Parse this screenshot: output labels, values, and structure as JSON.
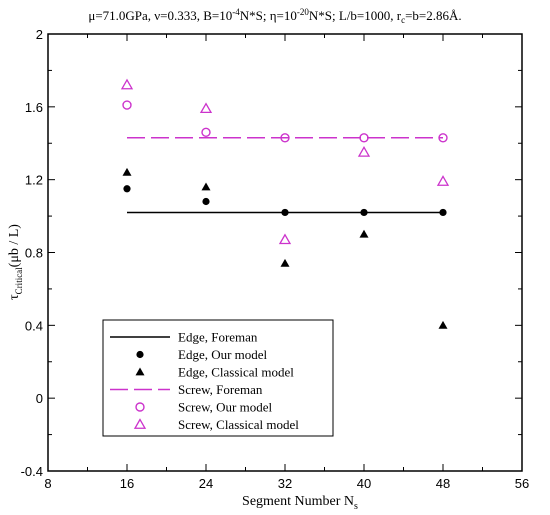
{
  "chart_data": {
    "type": "scatter",
    "title": "μ=71.0GPa, ν=0.333, B=10⁻⁴N*S; η=10⁻²⁰N*S; L/b=1000, r_c=b=2.86Å.",
    "title_parts": {
      "a": "μ=71.0GPa, ν=0.333, B=10",
      "b": "-4",
      "c": "N*S; η=10",
      "d": "-20",
      "e": "N*S; L/b=1000, r",
      "f": "c",
      "g": "=b=2.86Å."
    },
    "xlabel": "Segment Number N",
    "xlabel_sub": "s",
    "ylabel": "τ",
    "ylabel_sub": "Critical",
    "ylabel_tail": "(μb / L)",
    "xlim": [
      8,
      56
    ],
    "ylim": [
      -0.4,
      2
    ],
    "xticks": [
      "8",
      "16",
      "24",
      "32",
      "40",
      "48",
      "56"
    ],
    "yticks": [
      "-0.4",
      "0",
      "0.4",
      "0.8",
      "1.2",
      "1.6",
      "2"
    ],
    "grid": false,
    "legend_position": "bottom-left",
    "colors": {
      "edge": "#000000",
      "screw": "#cc33cc"
    },
    "series": [
      {
        "name": "Edge, Foreman",
        "style": "line-solid",
        "color": "#000000",
        "x": [
          16,
          48
        ],
        "y": [
          1.02,
          1.02
        ]
      },
      {
        "name": "Edge, Our model",
        "style": "filled-circle",
        "color": "#000000",
        "x": [
          16,
          24,
          32,
          40,
          48
        ],
        "y": [
          1.15,
          1.08,
          1.02,
          1.02,
          1.02
        ]
      },
      {
        "name": "Edge, Classical model",
        "style": "filled-triangle",
        "color": "#000000",
        "x": [
          16,
          24,
          32,
          40,
          48
        ],
        "y": [
          1.24,
          1.16,
          0.74,
          0.9,
          0.4
        ]
      },
      {
        "name": "Screw, Foreman",
        "style": "line-dashed",
        "color": "#cc33cc",
        "x": [
          16,
          48
        ],
        "y": [
          1.43,
          1.43
        ]
      },
      {
        "name": "Screw, Our model",
        "style": "open-circle",
        "color": "#cc33cc",
        "x": [
          16,
          24,
          32,
          40,
          48
        ],
        "y": [
          1.61,
          1.46,
          1.43,
          1.43,
          1.43
        ]
      },
      {
        "name": "Screw, Classical model",
        "style": "open-triangle",
        "color": "#cc33cc",
        "x": [
          16,
          24,
          32,
          40,
          48
        ],
        "y": [
          1.72,
          1.59,
          0.87,
          1.35,
          1.19
        ]
      }
    ]
  }
}
